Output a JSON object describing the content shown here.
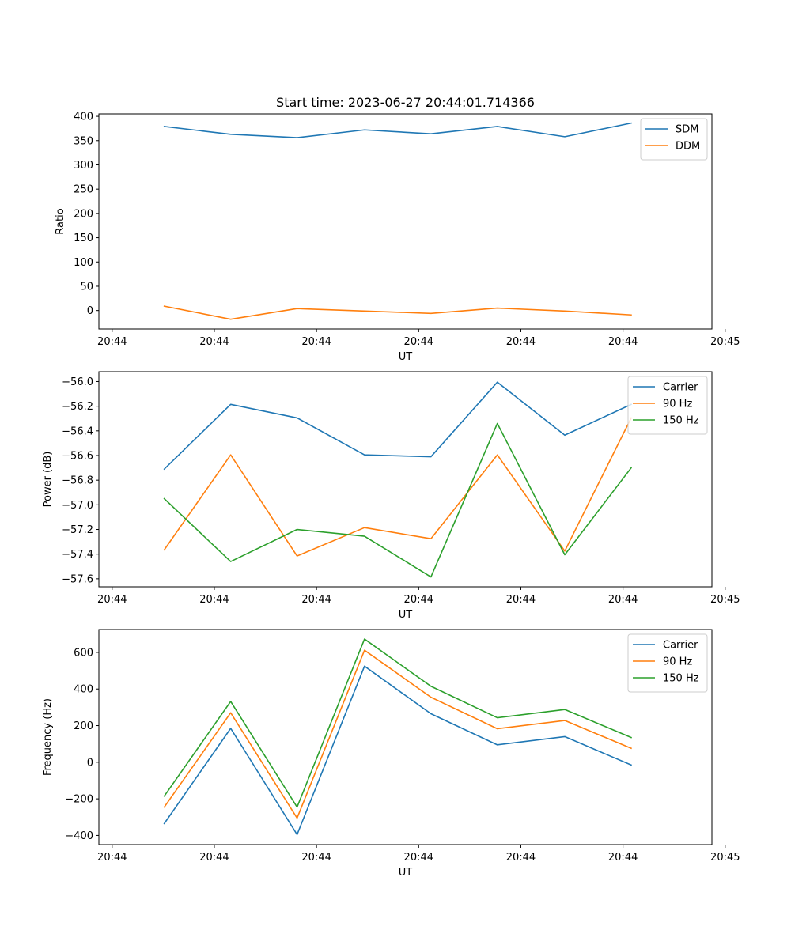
{
  "chart_data": [
    {
      "type": "line",
      "title": "Start time: 2023-06-27 20:44:01.714366",
      "xlabel": "UT",
      "ylabel": "Ratio",
      "xlim": [
        0,
        6
      ],
      "ylim": [
        -38,
        405
      ],
      "x_ticks": [
        0.13,
        1.13,
        2.13,
        3.13,
        4.13,
        5.13,
        6.13
      ],
      "x_tick_labels": [
        "20:44",
        "20:44",
        "20:44",
        "20:44",
        "20:44",
        "20:44",
        "20:45"
      ],
      "y_ticks": [
        0,
        50,
        100,
        150,
        200,
        250,
        300,
        350,
        400
      ],
      "y_tick_labels": [
        "0",
        "50",
        "100",
        "150",
        "200",
        "250",
        "300",
        "350",
        "400"
      ],
      "x": [
        0.64,
        1.29,
        1.94,
        2.6,
        3.25,
        3.9,
        4.56,
        5.21
      ],
      "legend_position": "top-right",
      "grid": false,
      "series": [
        {
          "name": "SDM",
          "color": "#1f77b4",
          "values": [
            379,
            363,
            356,
            372,
            364,
            379,
            358,
            386
          ]
        },
        {
          "name": "DDM",
          "color": "#ff7f0e",
          "values": [
            9,
            -18,
            4,
            -1,
            -6,
            5,
            -1,
            -9
          ]
        }
      ]
    },
    {
      "type": "line",
      "title": "",
      "xlabel": "UT",
      "ylabel": "Power (dB)",
      "xlim": [
        0,
        6
      ],
      "ylim": [
        -57.665,
        -55.92
      ],
      "x_ticks": [
        0.13,
        1.13,
        2.13,
        3.13,
        4.13,
        5.13,
        6.13
      ],
      "x_tick_labels": [
        "20:44",
        "20:44",
        "20:44",
        "20:44",
        "20:44",
        "20:44",
        "20:45"
      ],
      "y_ticks": [
        -57.6,
        -57.4,
        -57.2,
        -57.0,
        -56.8,
        -56.6,
        -56.4,
        -56.2,
        -56.0
      ],
      "y_tick_labels": [
        "−57.6",
        "−57.4",
        "−57.2",
        "−57.0",
        "−56.8",
        "−56.6",
        "−56.4",
        "−56.2",
        "−56.0"
      ],
      "x": [
        0.64,
        1.29,
        1.94,
        2.6,
        3.25,
        3.9,
        4.56,
        5.21
      ],
      "legend_position": "top-right",
      "grid": false,
      "series": [
        {
          "name": "Carrier",
          "color": "#1f77b4",
          "values": [
            -56.71,
            -56.185,
            -56.295,
            -56.595,
            -56.61,
            -56.005,
            -56.435,
            -56.185
          ]
        },
        {
          "name": "90 Hz",
          "color": "#ff7f0e",
          "values": [
            -57.365,
            -56.595,
            -57.415,
            -57.185,
            -57.275,
            -56.595,
            -57.375,
            -56.295
          ]
        },
        {
          "name": "150 Hz",
          "color": "#2ca02c",
          "values": [
            -56.95,
            -57.46,
            -57.2,
            -57.255,
            -57.585,
            -56.34,
            -57.405,
            -56.7
          ]
        }
      ]
    },
    {
      "type": "line",
      "title": "",
      "xlabel": "UT",
      "ylabel": "Frequency (Hz)",
      "xlim": [
        0,
        6
      ],
      "ylim": [
        -450,
        725
      ],
      "x_ticks": [
        0.13,
        1.13,
        2.13,
        3.13,
        4.13,
        5.13,
        6.13
      ],
      "x_tick_labels": [
        "20:44",
        "20:44",
        "20:44",
        "20:44",
        "20:44",
        "20:44",
        "20:45"
      ],
      "y_ticks": [
        -400,
        -200,
        0,
        200,
        400,
        600
      ],
      "y_tick_labels": [
        "−400",
        "−200",
        "0",
        "200",
        "400",
        "600"
      ],
      "x": [
        0.64,
        1.29,
        1.94,
        2.6,
        3.25,
        3.9,
        4.56,
        5.21
      ],
      "legend_position": "top-right",
      "grid": false,
      "series": [
        {
          "name": "Carrier",
          "color": "#1f77b4",
          "values": [
            -335,
            185,
            -395,
            525,
            265,
            95,
            140,
            -15
          ]
        },
        {
          "name": "90 Hz",
          "color": "#ff7f0e",
          "values": [
            -245,
            270,
            -305,
            612,
            355,
            183,
            228,
            76
          ]
        },
        {
          "name": "150 Hz",
          "color": "#2ca02c",
          "values": [
            -185,
            332,
            -245,
            673,
            415,
            243,
            288,
            135
          ]
        }
      ]
    }
  ]
}
